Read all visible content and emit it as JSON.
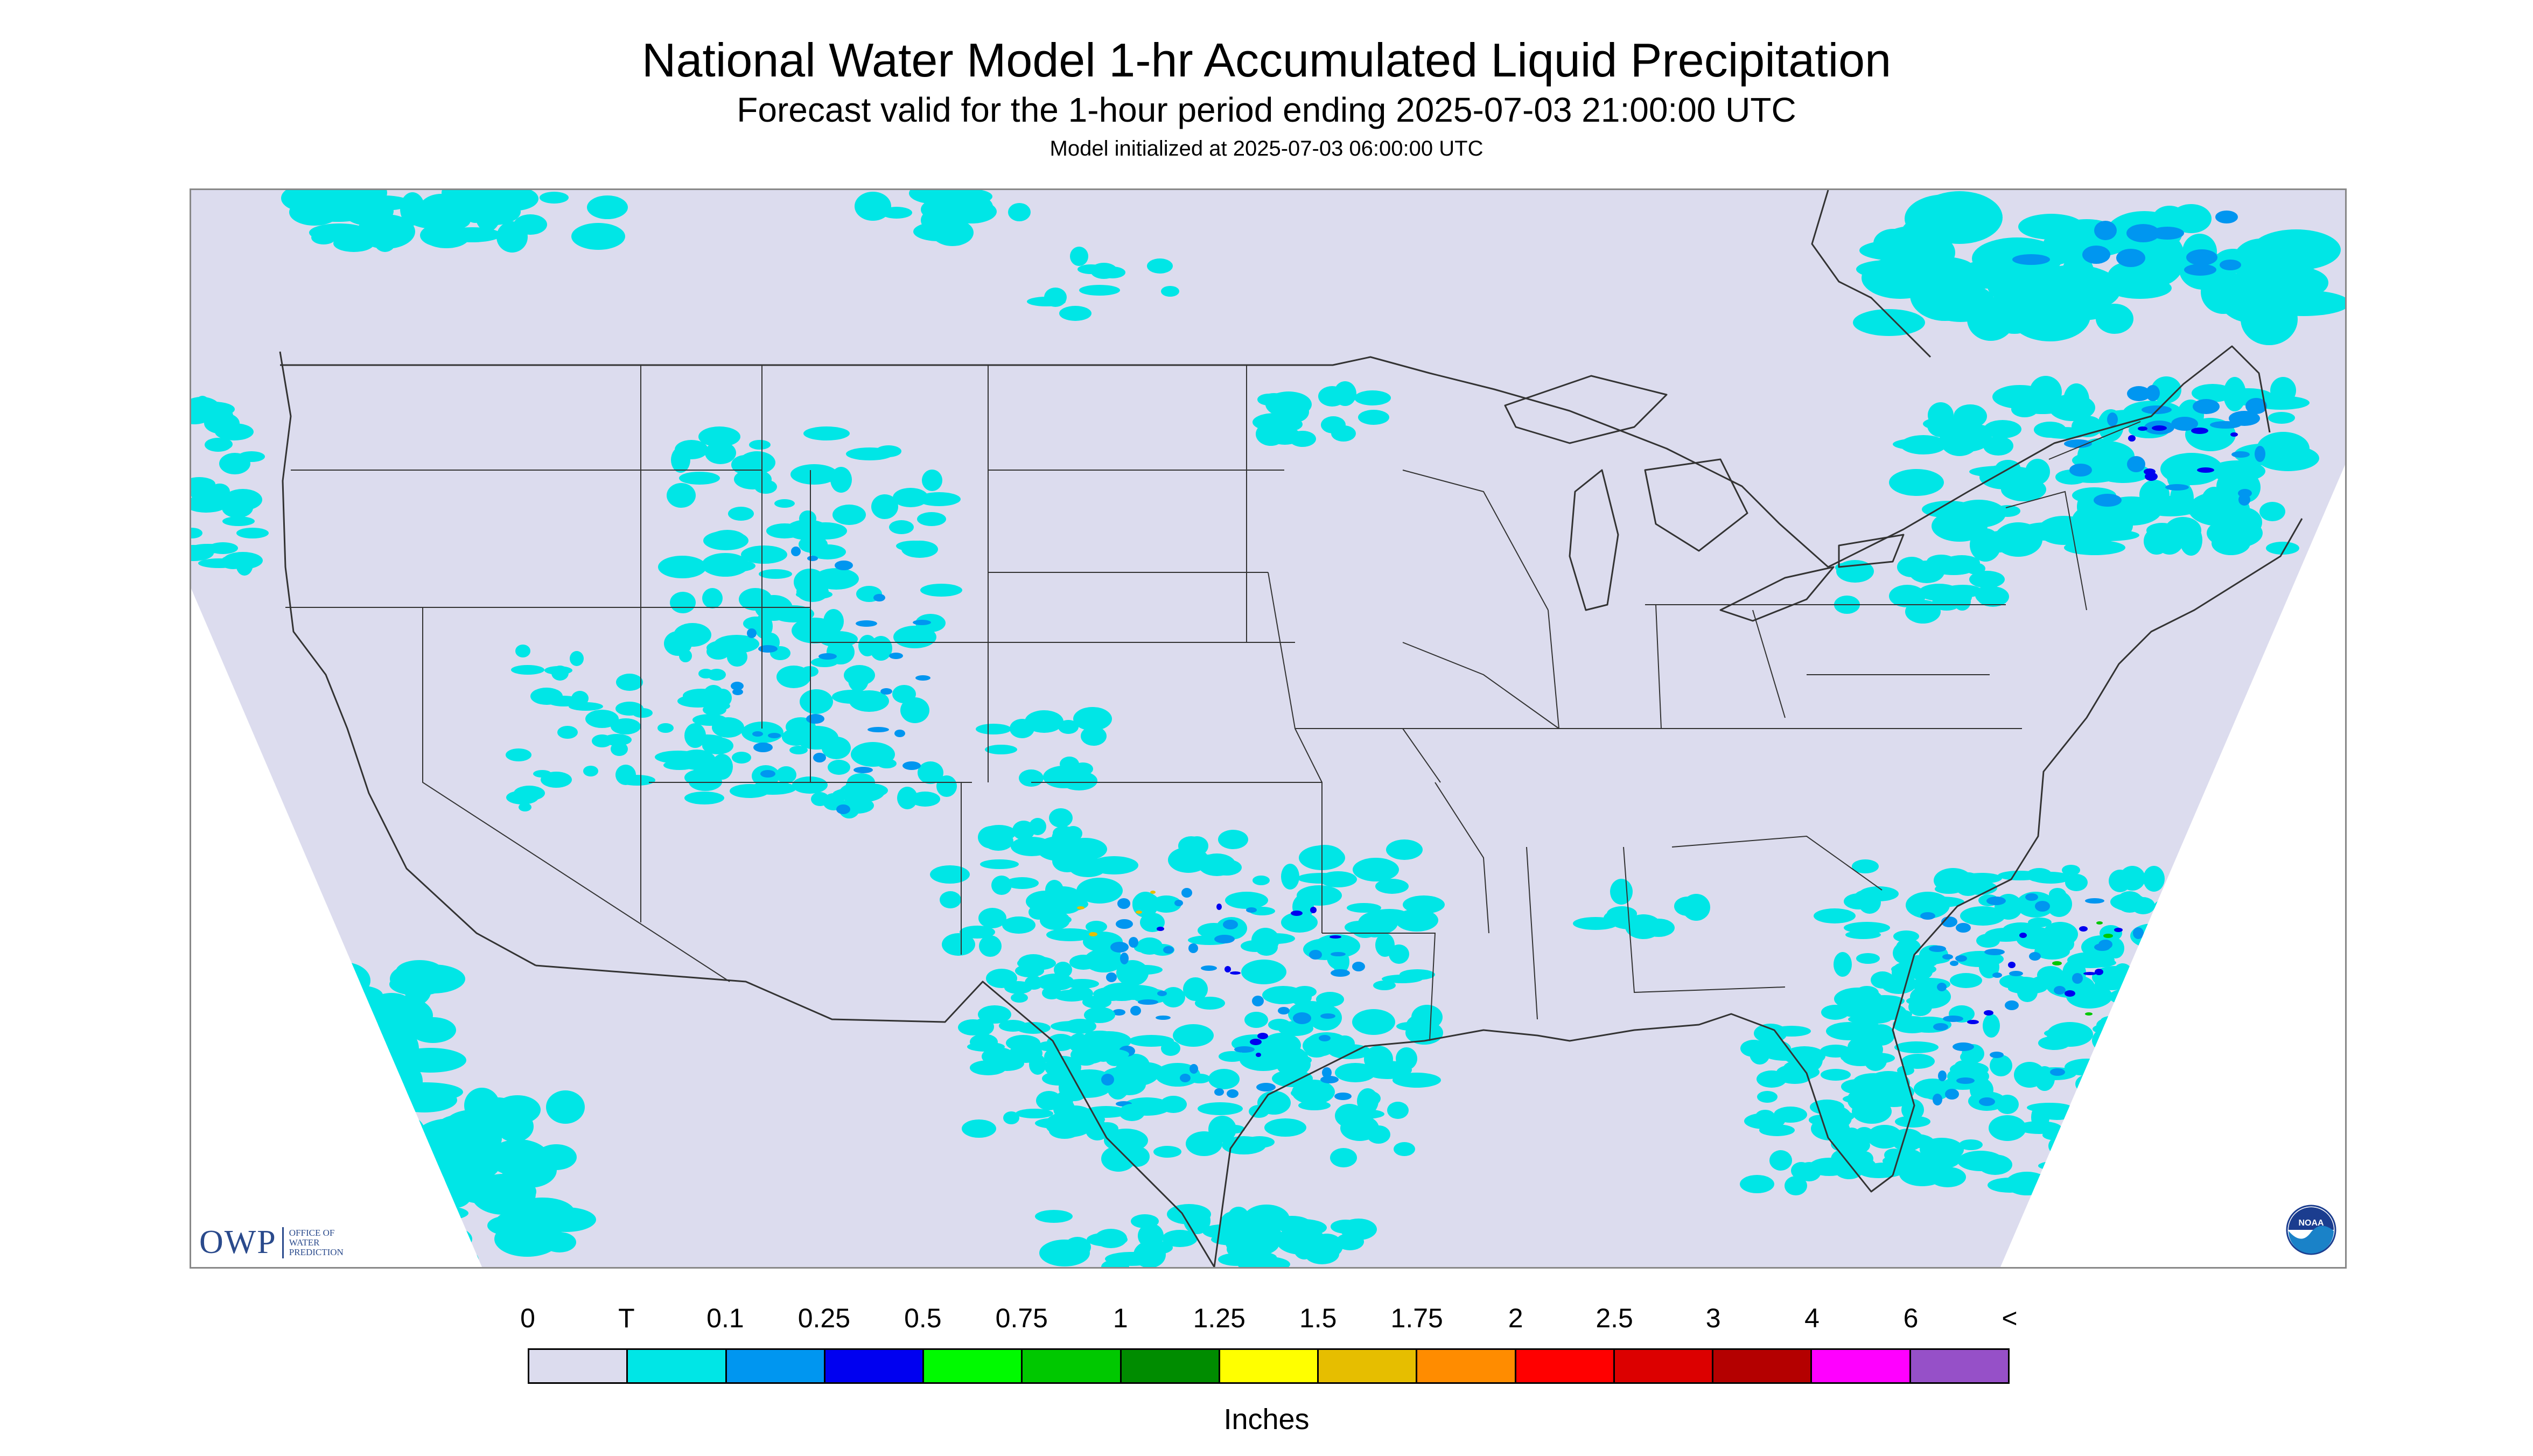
{
  "header": {
    "title": "National Water Model 1-hr Accumulated Liquid Precipitation",
    "subtitle": "Forecast valid for the 1-hour period ending 2025-07-03 21:00:00 UTC",
    "init": "Model initialized at 2025-07-03 06:00:00 UTC"
  },
  "legend": {
    "labels": [
      "0",
      "T",
      "0.1",
      "0.25",
      "0.5",
      "0.75",
      "1",
      "1.25",
      "1.5",
      "1.75",
      "2",
      "2.5",
      "3",
      "4",
      "6",
      "<"
    ],
    "colors": [
      "#dcdcee",
      "#00e6e6",
      "#0096f0",
      "#0000f0",
      "#00fa00",
      "#00c800",
      "#008c00",
      "#ffff00",
      "#e6be00",
      "#ff8c00",
      "#ff0000",
      "#dc0000",
      "#b40000",
      "#ff00ff",
      "#9650c8"
    ],
    "units": "Inches"
  },
  "logos": {
    "owp_main": "OWP",
    "owp_text": "OFFICE OF WATER PREDICTION",
    "noaa": "NOAA"
  },
  "map_colors": {
    "domain": "#dcdcee",
    "outside": "#ffffff",
    "light": "#00e6e6",
    "medium": "#0096f0",
    "heavy": "#0000f0",
    "green": "#00c800",
    "yellow": "#e6be00",
    "boundary": "#333333"
  }
}
